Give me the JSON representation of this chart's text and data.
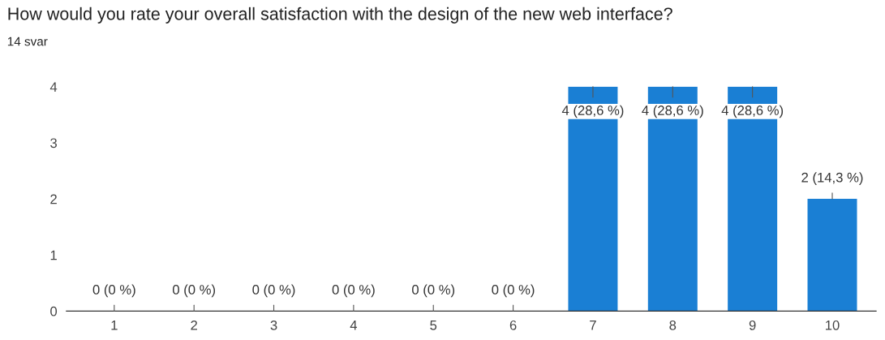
{
  "chart_data": {
    "type": "bar",
    "title": "How would you rate your overall satisfaction with the design of the new web interface?",
    "subtitle": "14 svar",
    "categories": [
      "1",
      "2",
      "3",
      "4",
      "5",
      "6",
      "7",
      "8",
      "9",
      "10"
    ],
    "values": [
      0,
      0,
      0,
      0,
      0,
      0,
      4,
      4,
      4,
      2
    ],
    "value_labels": [
      "0 (0 %)",
      "0 (0 %)",
      "0 (0 %)",
      "0 (0 %)",
      "0 (0 %)",
      "0 (0 %)",
      "4 (28,6 %)",
      "4 (28,6 %)",
      "4 (28,6 %)",
      "2 (14,3 %)"
    ],
    "color": "#1a7fd4",
    "ylim": [
      0,
      4
    ],
    "yticks": [
      0,
      1,
      2,
      3,
      4
    ],
    "grid": false
  }
}
